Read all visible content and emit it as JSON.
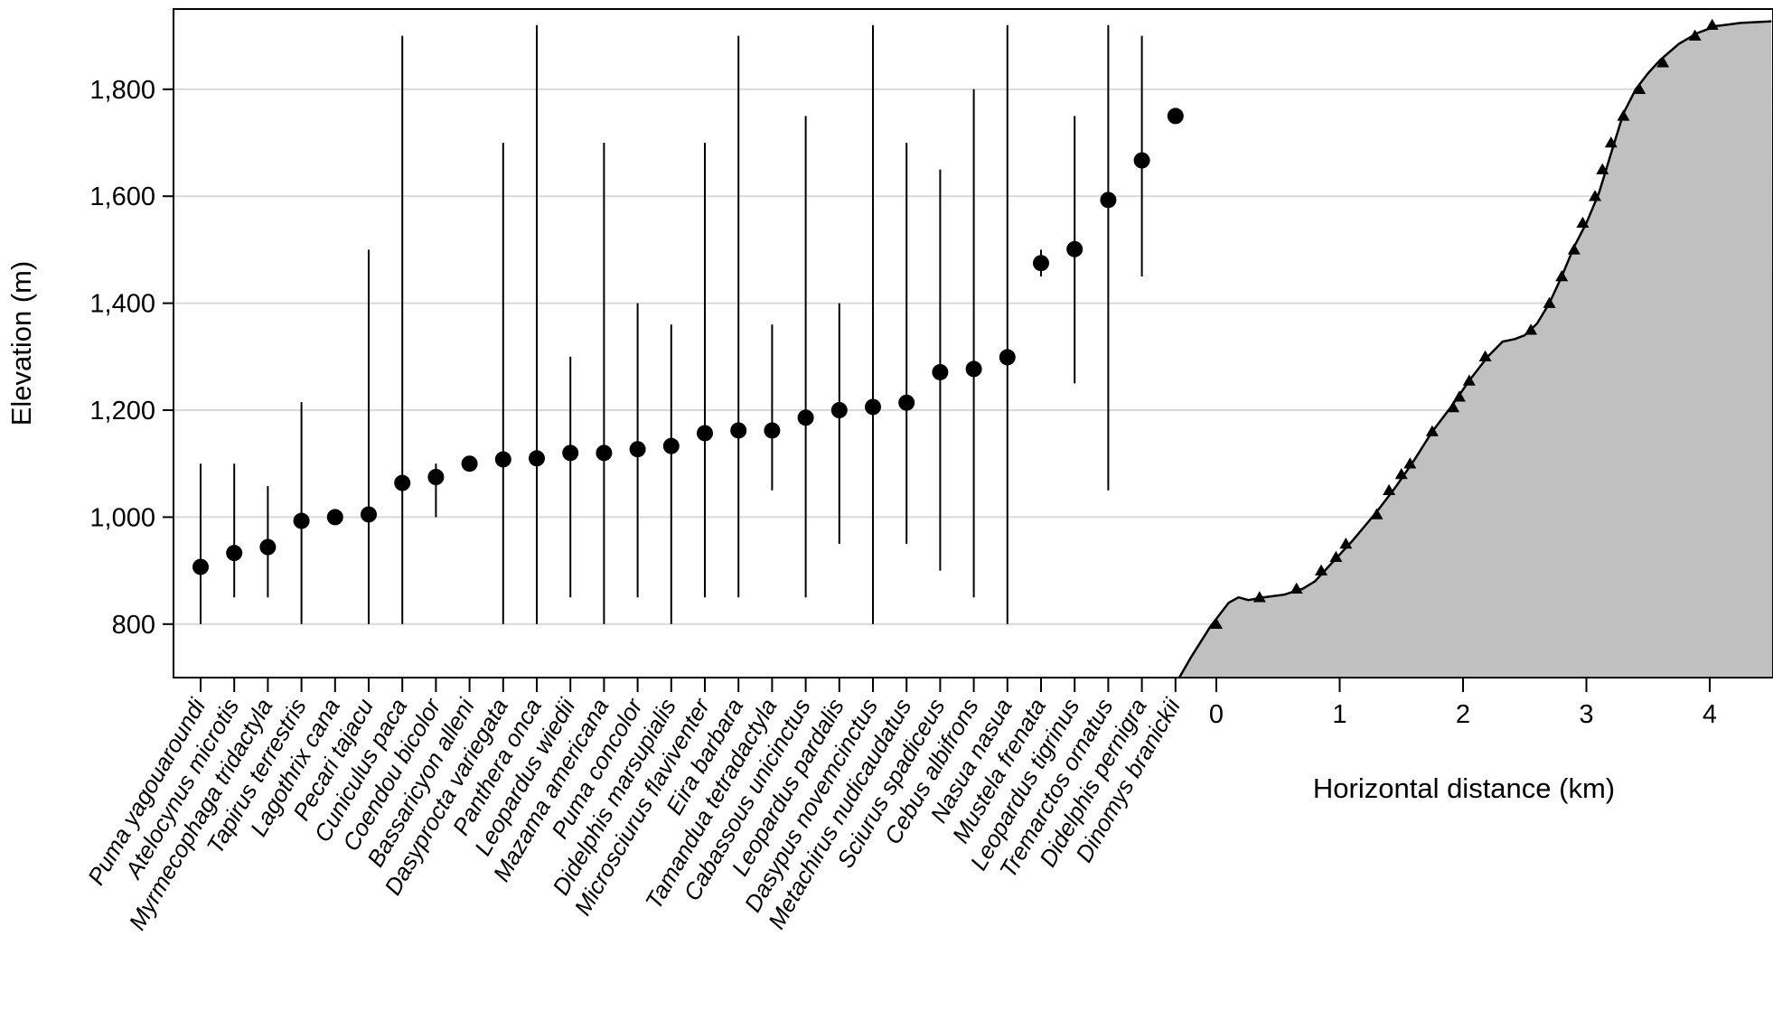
{
  "chart_data": {
    "type": "scatter",
    "subtype": "point-range with elevation profile",
    "ylabel": "Elevation (m)",
    "ylim": [
      700,
      1950
    ],
    "yticks": [
      800,
      1000,
      1200,
      1400,
      1600,
      1800
    ],
    "ytick_labels": [
      "800",
      "1,000",
      "1,200",
      "1,400",
      "1,600",
      "1,800"
    ],
    "grid": "horizontal",
    "species": [
      {
        "name": "Puma yagouaroundi",
        "mean": 907,
        "min": 800,
        "max": 1100
      },
      {
        "name": "Atelocynus microtis",
        "mean": 933,
        "min": 850,
        "max": 1100
      },
      {
        "name": "Myrmecophaga tridactyla",
        "mean": 944,
        "min": 850,
        "max": 1058
      },
      {
        "name": "Tapirus terrestris",
        "mean": 993,
        "min": 800,
        "max": 1215
      },
      {
        "name": "Lagothrix cana",
        "mean": 1000,
        "min": null,
        "max": null
      },
      {
        "name": "Pecari tajacu",
        "mean": 1005,
        "min": 800,
        "max": 1500
      },
      {
        "name": "Cuniculus paca",
        "mean": 1064,
        "min": 800,
        "max": 1900
      },
      {
        "name": "Coendou bicolor",
        "mean": 1075,
        "min": 1000,
        "max": 1100
      },
      {
        "name": "Bassaricyon alleni",
        "mean": 1100,
        "min": null,
        "max": null
      },
      {
        "name": "Dasyprocta variegata",
        "mean": 1108,
        "min": 800,
        "max": 1700
      },
      {
        "name": "Panthera onca",
        "mean": 1110,
        "min": 800,
        "max": 1920
      },
      {
        "name": "Leopardus wiedii",
        "mean": 1120,
        "min": 850,
        "max": 1300
      },
      {
        "name": "Mazama americana",
        "mean": 1120,
        "min": 800,
        "max": 1700
      },
      {
        "name": "Puma concolor",
        "mean": 1127,
        "min": 850,
        "max": 1400
      },
      {
        "name": "Didelphis marsupialis",
        "mean": 1133,
        "min": 800,
        "max": 1360
      },
      {
        "name": "Microsciurus flaviventer",
        "mean": 1157,
        "min": 850,
        "max": 1700
      },
      {
        "name": "Eira barbara",
        "mean": 1162,
        "min": 850,
        "max": 1900
      },
      {
        "name": "Tamandua tetradactyla",
        "mean": 1162,
        "min": 1050,
        "max": 1360
      },
      {
        "name": "Cabassous unicinctus",
        "mean": 1186,
        "min": 850,
        "max": 1750
      },
      {
        "name": "Leopardus pardalis",
        "mean": 1200,
        "min": 950,
        "max": 1400
      },
      {
        "name": "Dasypus novemcinctus",
        "mean": 1206,
        "min": 800,
        "max": 1920
      },
      {
        "name": "Metachirus nudicaudatus",
        "mean": 1214,
        "min": 950,
        "max": 1700
      },
      {
        "name": "Sciurus spadiceus",
        "mean": 1271,
        "min": 900,
        "max": 1650
      },
      {
        "name": "Cebus albifrons",
        "mean": 1277,
        "min": 850,
        "max": 1800
      },
      {
        "name": "Nasua nasua",
        "mean": 1299,
        "min": 800,
        "max": 1920
      },
      {
        "name": "Mustela frenata",
        "mean": 1475,
        "min": 1450,
        "max": 1500
      },
      {
        "name": "Leopardus tigrinus",
        "mean": 1501,
        "min": 1250,
        "max": 1750
      },
      {
        "name": "Tremarctos ornatus",
        "mean": 1593,
        "min": 1050,
        "max": 1920
      },
      {
        "name": "Didelphis pernigra",
        "mean": 1667,
        "min": 1450,
        "max": 1900
      },
      {
        "name": "Dinomys branickii",
        "mean": 1750,
        "min": null,
        "max": null
      }
    ],
    "profile": {
      "xlabel": "Horizontal distance (km)",
      "xticks": [
        0,
        1,
        2,
        3,
        4
      ],
      "xlim": [
        -0.3,
        4.5
      ],
      "line": [
        [
          -0.3,
          700
        ],
        [
          -0.2,
          740
        ],
        [
          -0.05,
          795
        ],
        [
          0.1,
          840
        ],
        [
          0.18,
          850
        ],
        [
          0.26,
          845
        ],
        [
          0.38,
          850
        ],
        [
          0.55,
          855
        ],
        [
          0.7,
          866
        ],
        [
          0.8,
          880
        ],
        [
          0.9,
          905
        ],
        [
          1.0,
          930
        ],
        [
          1.1,
          955
        ],
        [
          1.3,
          1010
        ],
        [
          1.45,
          1055
        ],
        [
          1.6,
          1105
        ],
        [
          1.75,
          1160
        ],
        [
          1.9,
          1205
        ],
        [
          2.05,
          1255
        ],
        [
          2.2,
          1300
        ],
        [
          2.32,
          1328
        ],
        [
          2.42,
          1333
        ],
        [
          2.5,
          1340
        ],
        [
          2.6,
          1362
        ],
        [
          2.7,
          1400
        ],
        [
          2.8,
          1450
        ],
        [
          2.9,
          1505
        ],
        [
          3.0,
          1550
        ],
        [
          3.1,
          1605
        ],
        [
          3.2,
          1680
        ],
        [
          3.3,
          1755
        ],
        [
          3.4,
          1800
        ],
        [
          3.5,
          1830
        ],
        [
          3.6,
          1855
        ],
        [
          3.75,
          1885
        ],
        [
          3.9,
          1905
        ],
        [
          4.05,
          1918
        ],
        [
          4.25,
          1924
        ],
        [
          4.5,
          1927
        ]
      ],
      "markers": [
        [
          0.0,
          800
        ],
        [
          0.35,
          850
        ],
        [
          0.65,
          866
        ],
        [
          0.85,
          900
        ],
        [
          0.97,
          925
        ],
        [
          1.05,
          950
        ],
        [
          1.3,
          1005
        ],
        [
          1.4,
          1050
        ],
        [
          1.5,
          1080
        ],
        [
          1.57,
          1100
        ],
        [
          1.75,
          1160
        ],
        [
          1.92,
          1205
        ],
        [
          1.97,
          1225
        ],
        [
          2.05,
          1255
        ],
        [
          2.18,
          1300
        ],
        [
          2.55,
          1350
        ],
        [
          2.7,
          1400
        ],
        [
          2.8,
          1450
        ],
        [
          2.9,
          1500
        ],
        [
          2.97,
          1550
        ],
        [
          3.07,
          1600
        ],
        [
          3.13,
          1650
        ],
        [
          3.2,
          1700
        ],
        [
          3.3,
          1750
        ],
        [
          3.43,
          1800
        ],
        [
          3.62,
          1850
        ],
        [
          3.88,
          1900
        ],
        [
          4.02,
          1920
        ]
      ],
      "fill_color": "#c0c0c0",
      "line_color": "#000000"
    }
  }
}
